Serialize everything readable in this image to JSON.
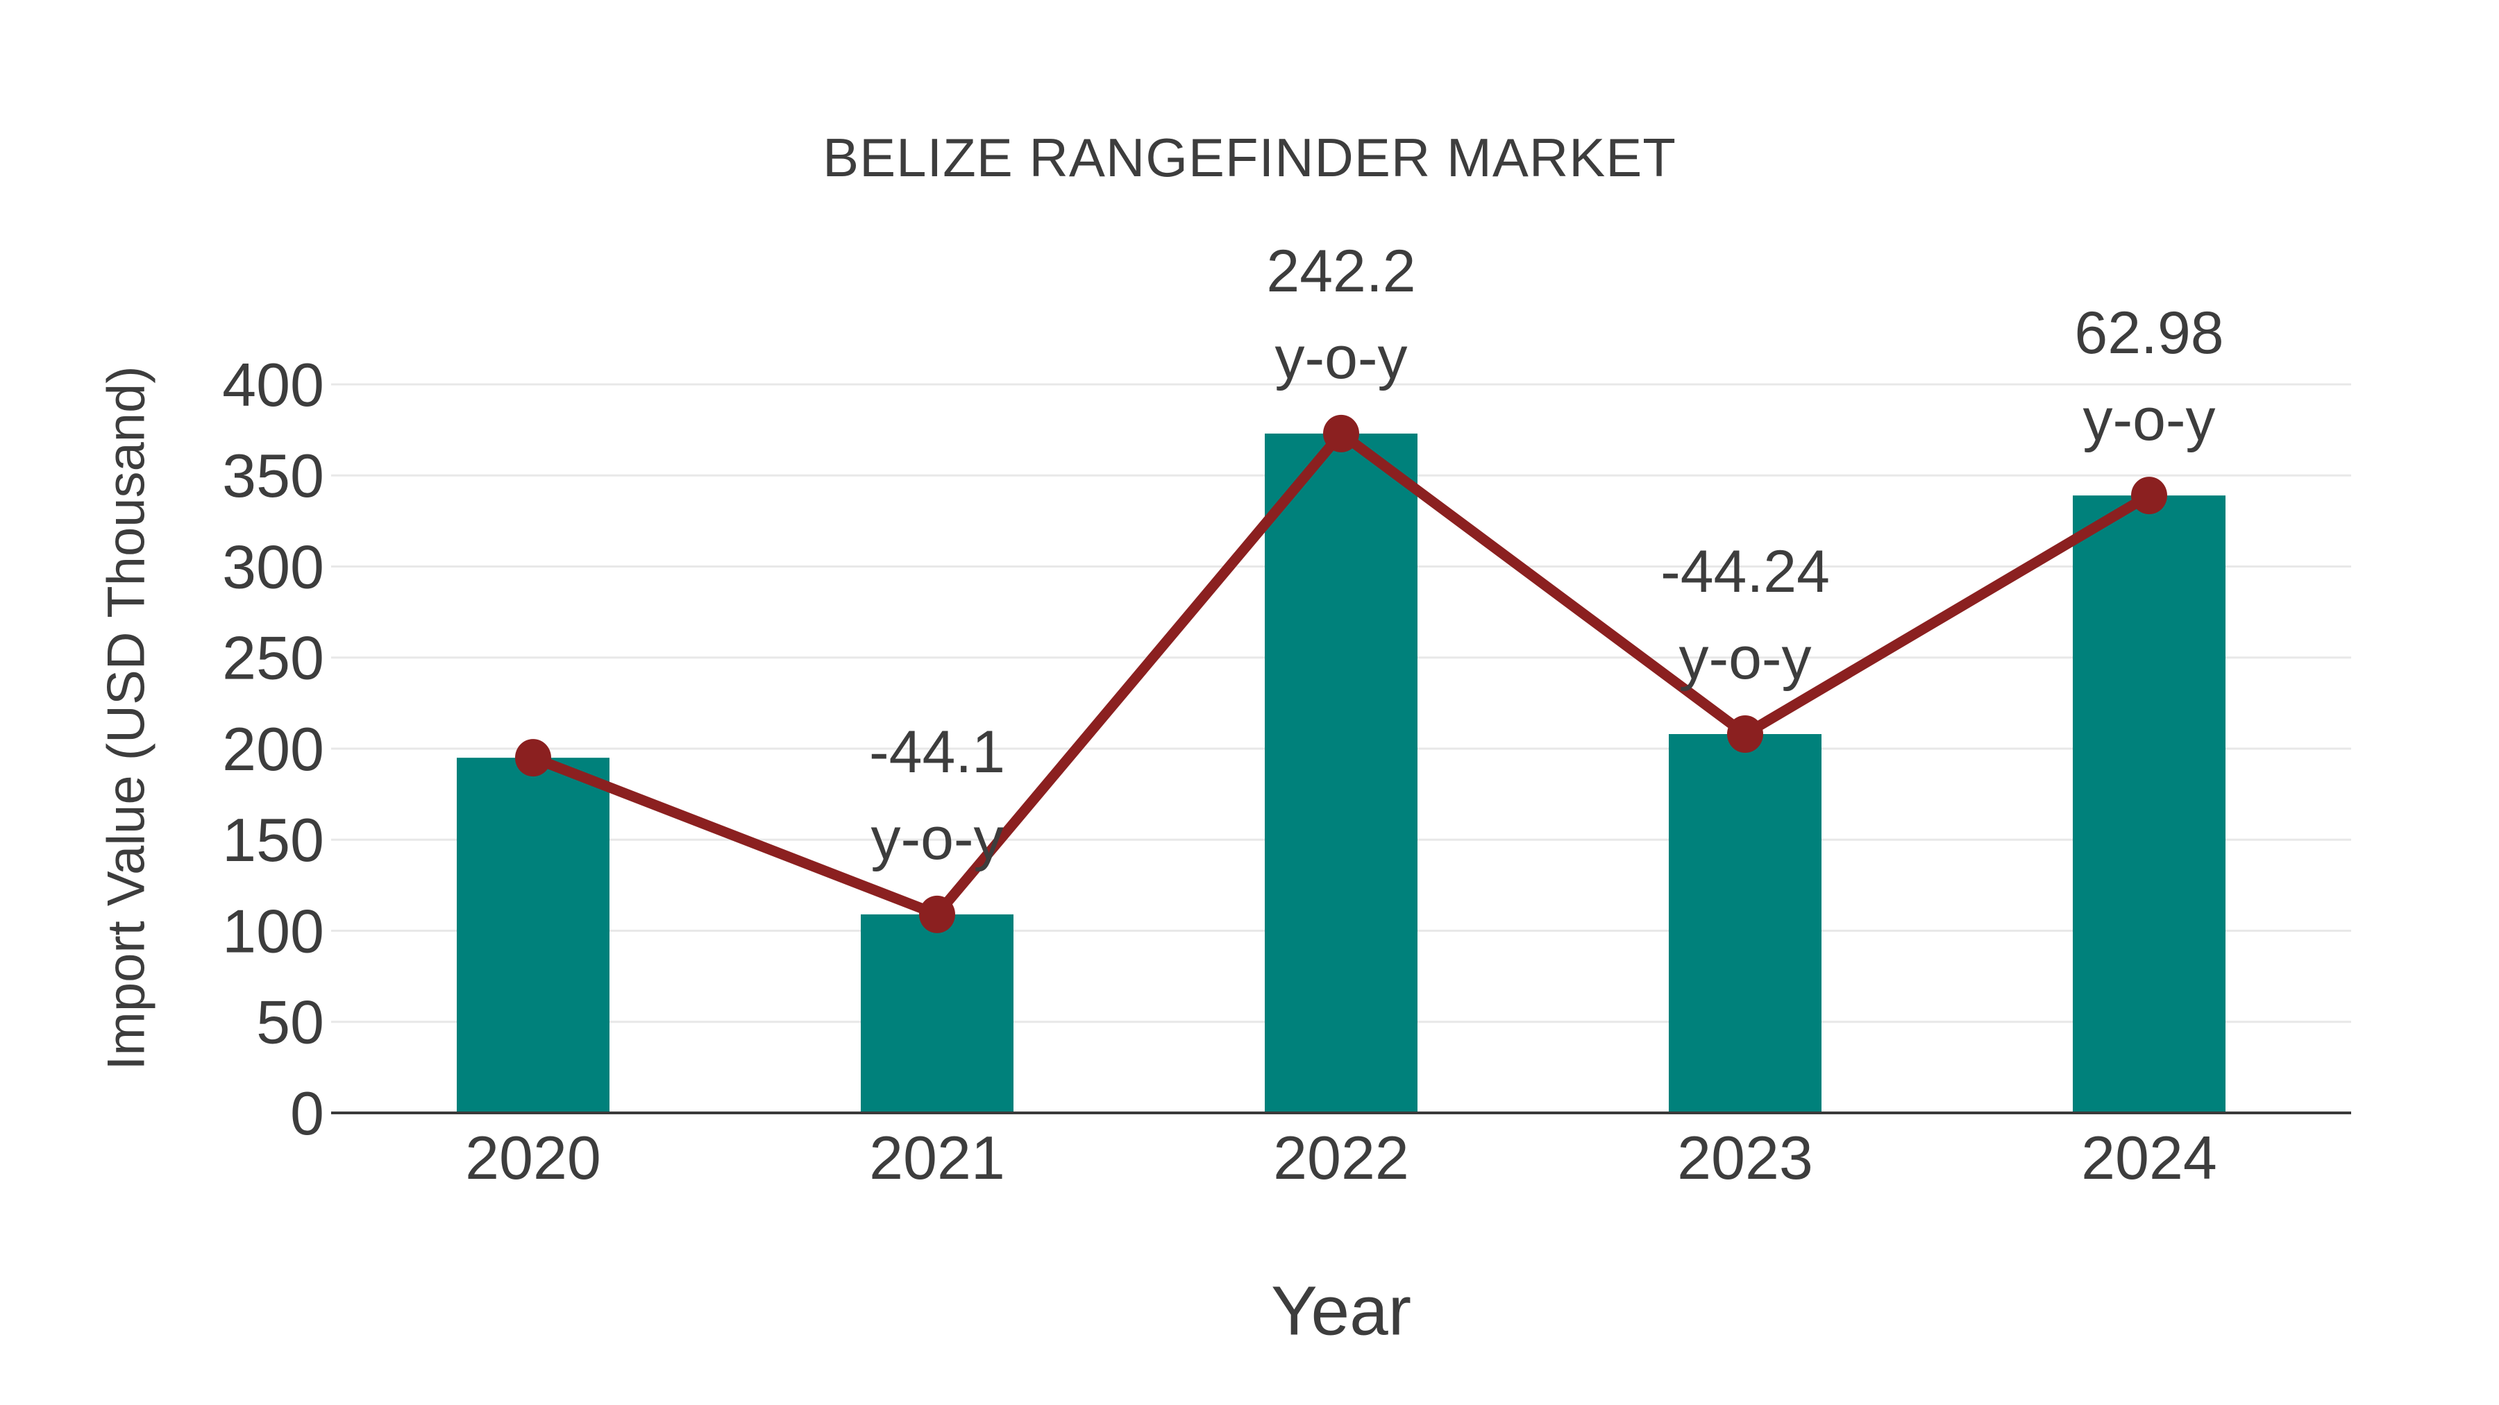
{
  "chart_data": {
    "type": "bar",
    "title": "BELIZE RANGEFINDER MARKET",
    "xlabel": "Year",
    "ylabel": "Import Value (USD Thousand)",
    "categories": [
      "2020",
      "2021",
      "2022",
      "2023",
      "2024"
    ],
    "series": [
      {
        "name": "Import Value bars",
        "type": "bar",
        "color": "#00817b",
        "values": [
          195,
          109,
          373,
          208,
          339
        ]
      },
      {
        "name": "Import Value trend",
        "type": "line",
        "color": "#8b2020",
        "values": [
          195,
          109,
          373,
          208,
          339
        ]
      }
    ],
    "annotations": [
      {
        "category": "2021",
        "value_text": "-44.1",
        "unit_text": "y-o-y"
      },
      {
        "category": "2022",
        "value_text": "242.2",
        "unit_text": "y-o-y"
      },
      {
        "category": "2023",
        "value_text": "-44.24",
        "unit_text": "y-o-y"
      },
      {
        "category": "2024",
        "value_text": "62.98",
        "unit_text": "y-o-y"
      }
    ],
    "ylim": [
      0,
      425
    ],
    "yticks": [
      0,
      50,
      100,
      150,
      200,
      250,
      300,
      350,
      400
    ],
    "grid": "horizontal",
    "legend": false,
    "colors": {
      "bar": "#00817b",
      "line": "#8b2020",
      "marker": "#8b2020",
      "text": "#3d3d3d",
      "grid": "#e8e8e8",
      "axis": "#3a3a3a",
      "background": "#ffffff"
    }
  }
}
